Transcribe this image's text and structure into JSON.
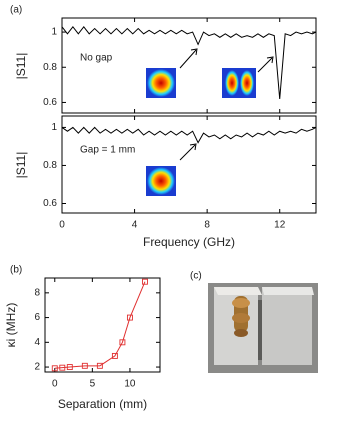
{
  "chart_data": [
    {
      "type": "line",
      "label": "(a)",
      "annotation": "No gap",
      "y_label": "|S11|",
      "x": [
        0,
        0.3,
        0.6,
        0.9,
        1.2,
        1.5,
        1.8,
        2.1,
        2.4,
        2.7,
        3.0,
        3.3,
        3.6,
        3.9,
        4.2,
        4.5,
        4.8,
        5.1,
        5.4,
        5.7,
        6.0,
        6.3,
        6.6,
        6.9,
        7.2,
        7.5,
        7.8,
        8.1,
        8.4,
        8.7,
        9.0,
        9.3,
        9.6,
        9.9,
        10.2,
        10.5,
        10.8,
        11.1,
        11.4,
        11.7,
        12.0,
        12.3,
        12.6,
        12.9,
        13.2,
        13.5,
        13.8,
        14
      ],
      "series": [
        {
          "color": "#000000",
          "values": [
            1.03,
            0.99,
            1.03,
            0.99,
            1.03,
            0.99,
            1.02,
            0.99,
            1.02,
            0.99,
            1.02,
            0.99,
            1.02,
            0.99,
            1.02,
            0.99,
            1.01,
            0.99,
            1.01,
            0.99,
            1.01,
            0.99,
            1.01,
            0.99,
            1.0,
            0.93,
            1.0,
            0.98,
            0.99,
            0.97,
            0.99,
            0.97,
            0.99,
            0.97,
            0.98,
            0.97,
            0.99,
            0.97,
            0.99,
            0.98,
            0.62,
            0.99,
            0.98,
            1.0,
            0.99,
            1.0,
            0.99,
            1.0
          ]
        }
      ],
      "xlim": [
        0,
        14
      ],
      "ylim": [
        0.54,
        1.08
      ],
      "xticks": [
        0,
        4,
        8,
        12
      ],
      "yticks": [
        0.6,
        0.8,
        1
      ]
    },
    {
      "type": "line",
      "annotation": "Gap = 1 mm",
      "y_label": "|S11|",
      "x_label": "Frequency (GHz)",
      "x": [
        0,
        0.3,
        0.6,
        0.9,
        1.2,
        1.5,
        1.8,
        2.1,
        2.4,
        2.7,
        3.0,
        3.3,
        3.6,
        3.9,
        4.2,
        4.5,
        4.8,
        5.1,
        5.4,
        5.7,
        6.0,
        6.3,
        6.6,
        6.9,
        7.2,
        7.5,
        7.8,
        8.1,
        8.4,
        8.7,
        9.0,
        9.3,
        9.6,
        9.9,
        10.2,
        10.5,
        10.8,
        11.1,
        11.4,
        11.7,
        12.0,
        12.3,
        12.6,
        12.9,
        13.2,
        13.5,
        13.8,
        14
      ],
      "series": [
        {
          "color": "#000000",
          "values": [
            1.0,
            0.98,
            1.0,
            0.97,
            1.0,
            0.97,
            1.0,
            0.97,
            0.99,
            0.97,
            0.99,
            0.97,
            0.99,
            0.97,
            0.99,
            0.96,
            0.98,
            0.96,
            0.98,
            0.96,
            0.98,
            0.96,
            0.98,
            0.96,
            0.98,
            0.92,
            0.97,
            0.95,
            0.96,
            0.94,
            0.96,
            0.94,
            0.96,
            0.95,
            0.97,
            0.95,
            0.97,
            0.96,
            0.98,
            0.96,
            0.98,
            0.97,
            0.98,
            0.97,
            0.99,
            0.98,
            0.99,
            1.0
          ]
        }
      ],
      "xlim": [
        0,
        14
      ],
      "ylim": [
        0.55,
        1.06
      ],
      "xticks": [
        0,
        4,
        8,
        12
      ],
      "yticks": [
        0.6,
        0.8,
        1
      ]
    },
    {
      "type": "line",
      "label": "(b)",
      "y_label": "κi (MHz)",
      "x_label": "Separation (mm)",
      "marker": "square",
      "x": [
        0,
        1,
        2,
        4,
        6,
        8,
        9,
        10,
        12
      ],
      "series": [
        {
          "color": "#e03030",
          "values": [
            1.9,
            1.95,
            2.0,
            2.1,
            2.1,
            2.9,
            4.0,
            6.0,
            8.9
          ]
        }
      ],
      "xlim": [
        -1.3,
        14
      ],
      "ylim": [
        1.6,
        9.2
      ],
      "xticks": [
        0,
        5,
        10
      ],
      "yticks": [
        2,
        4,
        6,
        8
      ]
    }
  ],
  "photo": {
    "label": "(c)"
  }
}
